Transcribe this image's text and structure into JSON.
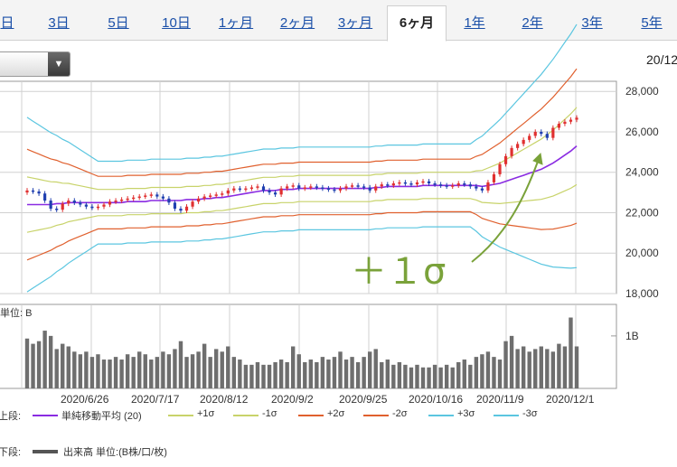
{
  "tabs": [
    {
      "label": "日",
      "active": false
    },
    {
      "label": "3日",
      "active": false
    },
    {
      "label": "5日",
      "active": false
    },
    {
      "label": "10日",
      "active": false
    },
    {
      "label": "1ヶ月",
      "active": false
    },
    {
      "label": "2ヶ月",
      "active": false
    },
    {
      "label": "3ヶ月",
      "active": false
    },
    {
      "label": "6ヶ月",
      "active": true
    },
    {
      "label": "1年",
      "active": false
    },
    {
      "label": "2年",
      "active": false
    },
    {
      "label": "3年",
      "active": false
    },
    {
      "label": "5年",
      "active": false
    }
  ],
  "date_label": "20/12",
  "annotation": "＋１σ",
  "legend": {
    "upper_prefix": "上段:",
    "upper_items": [
      {
        "label": "単純移動平均 (20)",
        "color": "#8a2be2"
      },
      {
        "label": "+1σ",
        "color": "#c8d36a"
      },
      {
        "label": "-1σ",
        "color": "#c8d36a"
      },
      {
        "label": "+2σ",
        "color": "#e0602e"
      },
      {
        "label": "-2σ",
        "color": "#e0602e"
      },
      {
        "label": "+3σ",
        "color": "#5bc6e0"
      },
      {
        "label": "-3σ",
        "color": "#5bc6e0"
      }
    ],
    "lower_prefix": "下段:",
    "lower_item": {
      "label": "出来高 単位:(B株/口/枚)",
      "color": "#555555"
    }
  },
  "chart_data": [
    {
      "type": "candlestick-bollinger",
      "title": "",
      "ylim": [
        18000,
        28500
      ],
      "y_ticks": [
        18000,
        20000,
        22000,
        24000,
        26000,
        28000
      ],
      "y_tick_labels": [
        "18,000",
        "20,000",
        "22,000",
        "24,000",
        "26,000",
        "28,000"
      ],
      "x_tick_labels": [
        "2020/6/26",
        "2020/7/17",
        "2020/8/12",
        "2020/9/2",
        "2020/9/25",
        "2020/10/16",
        "2020/11/9",
        "2020/12/1"
      ],
      "grid": true,
      "close": [
        23100,
        23050,
        22950,
        22600,
        22200,
        22150,
        22450,
        22600,
        22500,
        22400,
        22300,
        22250,
        22300,
        22400,
        22550,
        22600,
        22650,
        22700,
        22750,
        22800,
        22850,
        22900,
        22800,
        22700,
        22500,
        22200,
        22100,
        22300,
        22550,
        22700,
        22800,
        22850,
        22900,
        22950,
        23100,
        23200,
        23150,
        23200,
        23250,
        23300,
        23100,
        23000,
        22900,
        23200,
        23300,
        23350,
        23200,
        23250,
        23300,
        23250,
        23200,
        23150,
        23100,
        23200,
        23300,
        23350,
        23300,
        23250,
        23100,
        23300,
        23400,
        23350,
        23450,
        23500,
        23450,
        23400,
        23500,
        23550,
        23450,
        23400,
        23350,
        23300,
        23350,
        23450,
        23400,
        23300,
        23200,
        23100,
        23500,
        23900,
        24400,
        24800,
        25200,
        25400,
        25600,
        25800,
        26000,
        25900,
        25700,
        26200,
        26400,
        26500,
        26600,
        26700
      ],
      "sma20": [
        22400,
        22400,
        22400,
        22400,
        22400,
        22450,
        22450,
        22500,
        22500,
        22500,
        22500,
        22500,
        22500,
        22500,
        22500,
        22500,
        22500,
        22550,
        22550,
        22550,
        22550,
        22600,
        22600,
        22600,
        22600,
        22600,
        22600,
        22650,
        22650,
        22650,
        22700,
        22700,
        22750,
        22750,
        22800,
        22850,
        22900,
        22950,
        23000,
        23050,
        23100,
        23100,
        23100,
        23150,
        23150,
        23150,
        23200,
        23200,
        23200,
        23200,
        23200,
        23200,
        23200,
        23200,
        23200,
        23200,
        23200,
        23200,
        23200,
        23250,
        23250,
        23300,
        23300,
        23300,
        23300,
        23300,
        23300,
        23350,
        23350,
        23350,
        23350,
        23350,
        23350,
        23350,
        23350,
        23350,
        23350,
        23300,
        23350,
        23400,
        23450,
        23550,
        23650,
        23750,
        23850,
        23950,
        24050,
        24150,
        24300,
        24450,
        24650,
        24850,
        25050,
        25300
      ],
      "sigma_note": "bands shown: sma20 ± 1σ, 2σ, 3σ",
      "volume_ylim": [
        0,
        1.6
      ],
      "volume_tick_labels": [
        "1B"
      ],
      "volume": [
        0.95,
        0.85,
        0.9,
        1.1,
        1.0,
        0.75,
        0.85,
        0.8,
        0.7,
        0.65,
        0.7,
        0.6,
        0.65,
        0.55,
        0.55,
        0.6,
        0.55,
        0.65,
        0.6,
        0.7,
        0.65,
        0.55,
        0.6,
        0.7,
        0.65,
        0.75,
        0.9,
        0.6,
        0.65,
        0.7,
        0.85,
        0.6,
        0.75,
        0.7,
        0.8,
        0.6,
        0.55,
        0.45,
        0.45,
        0.5,
        0.45,
        0.45,
        0.5,
        0.55,
        0.5,
        0.8,
        0.65,
        0.5,
        0.55,
        0.5,
        0.6,
        0.55,
        0.6,
        0.7,
        0.55,
        0.6,
        0.5,
        0.6,
        0.7,
        0.75,
        0.5,
        0.55,
        0.45,
        0.5,
        0.45,
        0.4,
        0.45,
        0.4,
        0.4,
        0.45,
        0.4,
        0.45,
        0.4,
        0.5,
        0.55,
        0.45,
        0.6,
        0.65,
        0.7,
        0.6,
        0.55,
        0.9,
        1.0,
        0.75,
        0.8,
        0.7,
        0.75,
        0.8,
        0.75,
        0.7,
        0.85,
        0.8,
        1.35,
        0.8
      ]
    }
  ]
}
